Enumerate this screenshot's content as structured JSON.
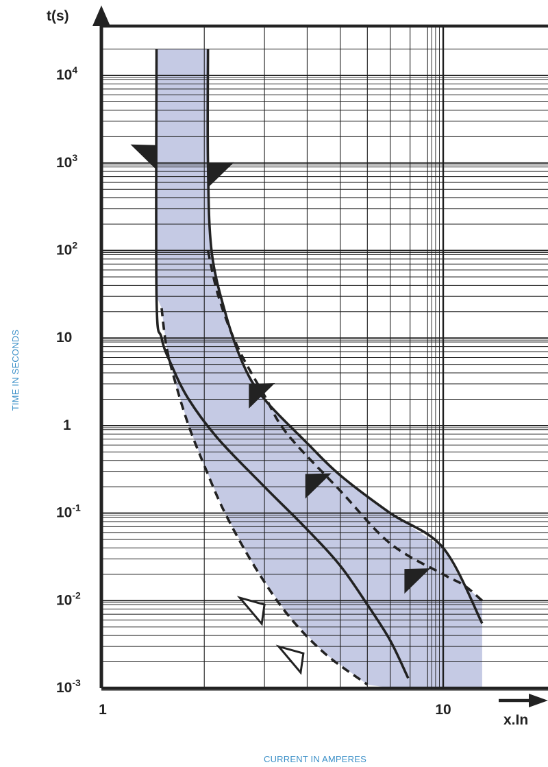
{
  "chart_data": {
    "type": "line",
    "title": "",
    "xlabel": "CURRENT IN AMPERES",
    "ylabel": "TIME IN SECONDS",
    "x_axis_unit_label": "x.In",
    "y_axis_unit_label": "t(s)",
    "x_scale": "log",
    "y_scale": "log",
    "xlim": [
      1,
      13
    ],
    "ylim": [
      0.001,
      20000
    ],
    "x_tick_labels": [
      {
        "value": 1,
        "base": "1",
        "sup": ""
      },
      {
        "value": 10,
        "base": "10",
        "sup": ""
      }
    ],
    "y_tick_labels": [
      {
        "value": 10000,
        "base": "10",
        "sup": "4"
      },
      {
        "value": 1000,
        "base": "10",
        "sup": "3"
      },
      {
        "value": 100,
        "base": "10",
        "sup": "2"
      },
      {
        "value": 10,
        "base": "10",
        "sup": ""
      },
      {
        "value": 1,
        "base": "1",
        "sup": ""
      },
      {
        "value": 0.1,
        "base": "10",
        "sup": "-1"
      },
      {
        "value": 0.01,
        "base": "10",
        "sup": "-2"
      },
      {
        "value": 0.001,
        "base": "10",
        "sup": "-3"
      }
    ],
    "grid": true,
    "legend": "none",
    "colors": {
      "band_fill": "#c5cae4",
      "curve": "#222222",
      "grid": "#1e1e1e",
      "caption": "#3a8fc7"
    },
    "series": [
      {
        "style": "solid",
        "role": "min_thermal",
        "points": [
          [
            1.45,
            20000
          ],
          [
            1.45,
            30
          ],
          [
            1.5,
            10
          ],
          [
            1.6,
            5
          ],
          [
            1.8,
            2
          ],
          [
            2.2,
            0.7
          ],
          [
            3,
            0.2
          ],
          [
            4,
            0.065
          ],
          [
            5,
            0.025
          ],
          [
            6,
            0.009
          ],
          [
            7,
            0.0035
          ],
          [
            7.9,
            0.0013
          ]
        ]
      },
      {
        "style": "solid",
        "role": "max_thermal",
        "points": [
          [
            2.05,
            20000
          ],
          [
            2.05,
            1000
          ],
          [
            2.1,
            100
          ],
          [
            2.3,
            20
          ],
          [
            2.6,
            5
          ],
          [
            3,
            2
          ],
          [
            4,
            0.63
          ],
          [
            5,
            0.27
          ],
          [
            7,
            0.1
          ],
          [
            10,
            0.04
          ],
          [
            13,
            0.0055
          ]
        ]
      },
      {
        "style": "dashed",
        "role": "min_limit",
        "points": [
          [
            1.5,
            22
          ],
          [
            1.55,
            8
          ],
          [
            1.65,
            3
          ],
          [
            1.8,
            1
          ],
          [
            2,
            0.35
          ],
          [
            2.3,
            0.1
          ],
          [
            2.8,
            0.025
          ],
          [
            3.5,
            0.007
          ],
          [
            4.5,
            0.0025
          ],
          [
            6,
            0.0011
          ]
        ]
      },
      {
        "style": "dashed",
        "role": "max_limit",
        "points": [
          [
            2.05,
            100
          ],
          [
            2.2,
            30
          ],
          [
            2.5,
            8
          ],
          [
            3,
            2.2
          ],
          [
            3.5,
            0.8
          ],
          [
            5,
            0.18
          ],
          [
            7,
            0.045
          ],
          [
            10,
            0.02
          ],
          [
            11.5,
            0.015
          ],
          [
            13,
            0.01
          ]
        ]
      }
    ],
    "markers": [
      {
        "style": "filled",
        "x": 1.45,
        "y": 1600,
        "side": "left"
      },
      {
        "style": "filled",
        "x": 2.05,
        "y": 1000,
        "side": "right"
      },
      {
        "style": "filled",
        "x": 2.7,
        "y": 3,
        "side": "right"
      },
      {
        "style": "filled",
        "x": 3.95,
        "y": 0.28,
        "side": "right"
      },
      {
        "style": "filled",
        "x": 7.7,
        "y": 0.023,
        "side": "right"
      },
      {
        "style": "hollow",
        "x": 3,
        "y": 0.009,
        "side": "left"
      },
      {
        "style": "hollow",
        "x": 3.9,
        "y": 0.0025,
        "side": "left"
      }
    ]
  }
}
